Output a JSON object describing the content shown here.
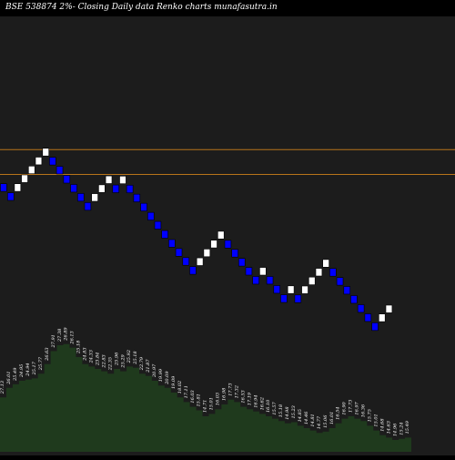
{
  "chart_data": {
    "type": "renko",
    "title": "BSE 538874  2%-  Closing Daily data  Renko  charts munafasutra.in",
    "colors": {
      "background": "#000000",
      "plot_background": "#1c1c1c",
      "up_fill": "#ffffff",
      "down_fill": "#0000ff",
      "brick_border": "#000000",
      "level_line": "#b8741a",
      "volume_fill": "#1f3a1d",
      "volume_text": "#ffffff"
    },
    "levels": [
      27.8,
      26.3
    ],
    "bricks": [
      {
        "dir": "down",
        "value": 25.54
      },
      {
        "dir": "down",
        "value": 25.03
      },
      {
        "dir": "up",
        "value": 25.54
      },
      {
        "dir": "up",
        "value": 26.05
      },
      {
        "dir": "up",
        "value": 26.57
      },
      {
        "dir": "up",
        "value": 27.1
      },
      {
        "dir": "up",
        "value": 27.64
      },
      {
        "dir": "down",
        "value": 27.09
      },
      {
        "dir": "down",
        "value": 26.55
      },
      {
        "dir": "down",
        "value": 26.02
      },
      {
        "dir": "down",
        "value": 25.5
      },
      {
        "dir": "down",
        "value": 24.99
      },
      {
        "dir": "down",
        "value": 24.49
      },
      {
        "dir": "up",
        "value": 24.98
      },
      {
        "dir": "up",
        "value": 25.48
      },
      {
        "dir": "up",
        "value": 25.99
      },
      {
        "dir": "down",
        "value": 25.47
      },
      {
        "dir": "up",
        "value": 25.98
      },
      {
        "dir": "down",
        "value": 25.46
      },
      {
        "dir": "down",
        "value": 24.95
      },
      {
        "dir": "down",
        "value": 24.45
      },
      {
        "dir": "down",
        "value": 23.96
      },
      {
        "dir": "down",
        "value": 23.48
      },
      {
        "dir": "down",
        "value": 23.01
      },
      {
        "dir": "down",
        "value": 22.55
      },
      {
        "dir": "down",
        "value": 22.1
      },
      {
        "dir": "down",
        "value": 21.66
      },
      {
        "dir": "down",
        "value": 21.23
      },
      {
        "dir": "up",
        "value": 21.65
      },
      {
        "dir": "up",
        "value": 22.08
      },
      {
        "dir": "up",
        "value": 22.52
      },
      {
        "dir": "up",
        "value": 22.97
      },
      {
        "dir": "down",
        "value": 22.51
      },
      {
        "dir": "down",
        "value": 22.06
      },
      {
        "dir": "down",
        "value": 21.62
      },
      {
        "dir": "down",
        "value": 21.19
      },
      {
        "dir": "down",
        "value": 20.77
      },
      {
        "dir": "up",
        "value": 21.19
      },
      {
        "dir": "down",
        "value": 20.77
      },
      {
        "dir": "down",
        "value": 20.35
      },
      {
        "dir": "down",
        "value": 19.94
      },
      {
        "dir": "up",
        "value": 20.34
      },
      {
        "dir": "down",
        "value": 19.93
      },
      {
        "dir": "up",
        "value": 20.33
      },
      {
        "dir": "up",
        "value": 20.74
      },
      {
        "dir": "up",
        "value": 21.15
      },
      {
        "dir": "up",
        "value": 21.57
      },
      {
        "dir": "down",
        "value": 21.14
      },
      {
        "dir": "down",
        "value": 20.72
      },
      {
        "dir": "down",
        "value": 20.31
      },
      {
        "dir": "down",
        "value": 19.9
      },
      {
        "dir": "down",
        "value": 19.5
      },
      {
        "dir": "down",
        "value": 19.11
      },
      {
        "dir": "down",
        "value": 18.73
      },
      {
        "dir": "up",
        "value": 19.1
      },
      {
        "dir": "up",
        "value": 19.48
      }
    ],
    "volume_labels": [
      "27.13",
      "26.01",
      "25.49",
      "24.95",
      "24.94",
      "25.17",
      "25.77",
      "26.63",
      "27.91",
      "27.38",
      "26.89",
      "26.13",
      "25.18",
      "24.83",
      "24.33",
      "23.84",
      "22.83",
      "22.35",
      "25.96",
      "25.29",
      "25.92",
      "25.18",
      "22.79",
      "21.87",
      "20.97",
      "19.99",
      "20.09",
      "19.09",
      "18.02",
      "17.11",
      "16.03",
      "15.81",
      "14.71",
      "15.01",
      "16.03",
      "16.98",
      "17.73",
      "17.32",
      "16.53",
      "17.19",
      "16.94",
      "16.62",
      "16.10",
      "15.57",
      "15.18",
      "14.98",
      "15.23",
      "14.85",
      "14.46",
      "14.81",
      "14.77",
      "15.06",
      "16.01",
      "16.54",
      "16.90",
      "17.73",
      "16.97",
      "16.36",
      "15.75",
      "15.01",
      "14.68",
      "14.63",
      "14.96",
      "15.24",
      "15.49"
    ],
    "volume_values": [
      46,
      54,
      57,
      60,
      61,
      62,
      66,
      74,
      85,
      90,
      91,
      88,
      80,
      74,
      72,
      70,
      68,
      66,
      70,
      68,
      72,
      71,
      66,
      64,
      60,
      56,
      54,
      50,
      46,
      42,
      38,
      35,
      30,
      32,
      36,
      40,
      44,
      42,
      38,
      36,
      34,
      32,
      30,
      28,
      26,
      24,
      25,
      22,
      20,
      18,
      16,
      17,
      20,
      24,
      28,
      30,
      28,
      26,
      22,
      18,
      14,
      12,
      10,
      11,
      12
    ]
  }
}
